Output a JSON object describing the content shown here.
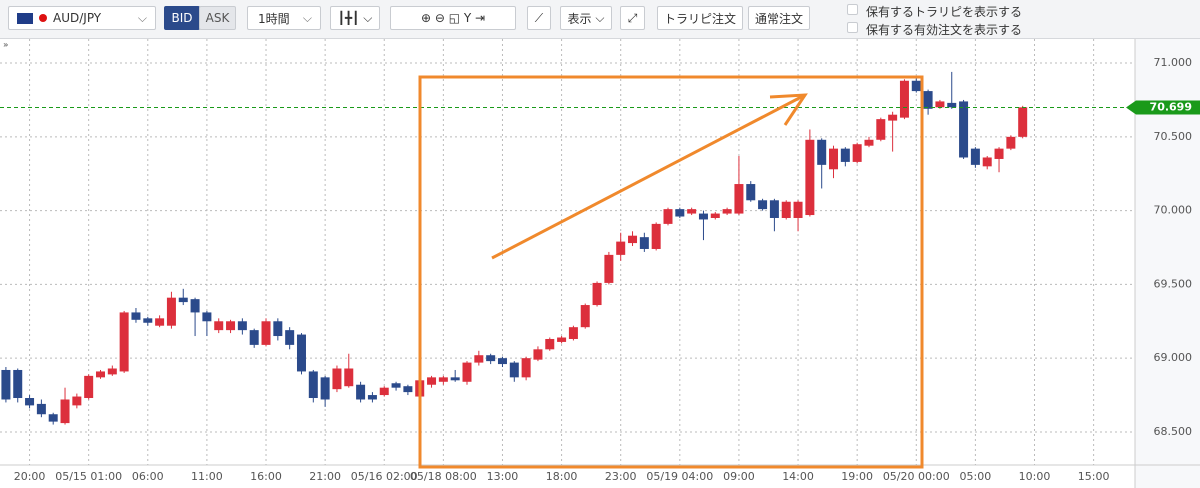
{
  "toolbar": {
    "symbol": "AUD/JPY",
    "bid": "BID",
    "ask": "ASK",
    "timeframe": "1時間",
    "display": "表示",
    "trarepi_order": "トラリピ注文",
    "normal_order": "通常注文",
    "show_trarepi": "保有するトラリピを表示する",
    "show_orders": "保有する有効注文を表示する"
  },
  "chart_data": {
    "type": "candlestick",
    "categories": [
      null,
      null,
      "20:00",
      null,
      null,
      null,
      null,
      "05/15 01:00",
      null,
      null,
      null,
      null,
      "06:00",
      null,
      null,
      null,
      null,
      "11:00",
      null,
      null,
      null,
      null,
      "16:00",
      null,
      null,
      null,
      null,
      "21:00",
      null,
      null,
      null,
      null,
      "05/16 02:00",
      null,
      null,
      null,
      null,
      "05/18 08:00",
      null,
      null,
      null,
      null,
      "13:00",
      null,
      null,
      null,
      null,
      "18:00",
      null,
      null,
      null,
      null,
      "23:00",
      null,
      null,
      null,
      null,
      "05/19 04:00",
      null,
      null,
      null,
      null,
      "09:00",
      null,
      null,
      null,
      null,
      "14:00",
      null,
      null,
      null,
      null,
      "19:00",
      null,
      null,
      null,
      null,
      "05/20 00:00",
      null,
      null,
      null,
      null,
      "05:00",
      null,
      null,
      null,
      null,
      "10:00",
      null,
      null,
      null,
      null,
      "15:00",
      null,
      null,
      null
    ],
    "open": [
      68.92,
      68.92,
      68.73,
      68.69,
      68.62,
      68.56,
      68.68,
      68.73,
      68.87,
      68.89,
      68.91,
      69.31,
      69.27,
      69.22,
      69.22,
      69.41,
      69.4,
      69.31,
      69.19,
      69.19,
      69.25,
      69.19,
      69.09,
      69.25,
      69.19,
      69.16,
      68.91,
      68.87,
      68.79,
      68.81,
      68.82,
      68.75,
      68.75,
      68.83,
      68.81,
      68.74,
      68.82,
      68.84,
      68.87,
      68.84,
      68.97,
      69.02,
      69.0,
      68.97,
      68.87,
      68.99,
      69.06,
      69.11,
      69.13,
      69.21,
      69.36,
      69.51,
      69.7,
      69.78,
      69.82,
      69.74,
      69.91,
      70.01,
      69.98,
      69.98,
      69.95,
      69.98,
      69.98,
      70.18,
      70.07,
      70.07,
      69.95,
      69.95,
      69.97,
      70.48,
      70.28,
      70.42,
      70.33,
      70.44,
      70.48,
      70.61,
      70.63,
      70.88,
      70.81,
      70.7,
      70.73,
      70.74,
      70.42,
      70.3,
      70.35,
      70.42,
      70.5,
      null,
      null,
      null,
      null,
      null,
      null,
      null,
      null,
      null
    ],
    "high": [
      68.94,
      68.93,
      68.75,
      68.72,
      68.63,
      68.8,
      68.76,
      68.89,
      68.92,
      68.95,
      69.32,
      69.34,
      69.28,
      69.29,
      69.45,
      69.47,
      69.41,
      69.32,
      69.27,
      69.26,
      69.27,
      69.2,
      69.27,
      69.27,
      69.21,
      69.17,
      68.92,
      68.88,
      68.95,
      69.03,
      68.84,
      68.77,
      68.81,
      68.84,
      68.82,
      68.86,
      68.88,
      68.88,
      68.92,
      68.98,
      69.05,
      69.03,
      69.01,
      68.98,
      69.01,
      69.08,
      69.14,
      69.15,
      69.22,
      69.37,
      69.52,
      69.72,
      69.85,
      69.86,
      69.85,
      69.92,
      70.02,
      70.02,
      70.02,
      70.0,
      69.99,
      70.02,
      70.37,
      70.2,
      70.08,
      70.08,
      70.07,
      70.07,
      70.55,
      70.49,
      70.44,
      70.43,
      70.46,
      70.5,
      70.63,
      70.67,
      70.89,
      70.91,
      70.82,
      70.75,
      70.94,
      70.75,
      70.43,
      70.37,
      70.43,
      70.51,
      70.71,
      null,
      null,
      null,
      null,
      null,
      null,
      null,
      null,
      null
    ],
    "low": [
      68.7,
      68.7,
      68.66,
      68.6,
      68.55,
      68.55,
      68.66,
      68.72,
      68.86,
      68.88,
      68.9,
      69.24,
      69.22,
      69.21,
      69.2,
      69.36,
      69.15,
      69.15,
      69.17,
      69.17,
      69.16,
      69.07,
      69.08,
      69.12,
      69.06,
      68.89,
      68.7,
      68.67,
      68.77,
      68.8,
      68.7,
      68.7,
      68.74,
      68.78,
      68.75,
      68.68,
      68.8,
      68.82,
      68.84,
      68.82,
      68.95,
      68.96,
      68.94,
      68.84,
      68.85,
      68.98,
      69.05,
      69.1,
      69.12,
      69.2,
      69.35,
      69.5,
      69.66,
      69.76,
      69.72,
      69.73,
      69.9,
      69.95,
      69.97,
      69.8,
      69.94,
      69.97,
      69.97,
      70.06,
      70.0,
      69.86,
      69.94,
      69.86,
      69.96,
      70.15,
      70.22,
      70.3,
      70.32,
      70.43,
      70.47,
      70.4,
      70.62,
      70.8,
      70.65,
      70.69,
      70.69,
      70.35,
      70.29,
      70.28,
      70.26,
      70.41,
      70.49,
      null,
      null,
      null,
      null,
      null,
      null,
      null,
      null,
      null
    ],
    "close": [
      68.72,
      68.73,
      68.68,
      68.62,
      68.57,
      68.72,
      68.74,
      68.88,
      68.91,
      68.93,
      69.31,
      69.26,
      69.24,
      69.27,
      69.41,
      69.38,
      69.31,
      69.25,
      69.25,
      69.25,
      69.19,
      69.09,
      69.25,
      69.15,
      69.09,
      68.91,
      68.73,
      68.72,
      68.93,
      68.93,
      68.72,
      68.72,
      68.8,
      68.8,
      68.77,
      68.85,
      68.87,
      68.87,
      68.85,
      68.97,
      69.02,
      68.98,
      68.96,
      68.87,
      69.0,
      69.06,
      69.13,
      69.14,
      69.21,
      69.36,
      69.51,
      69.7,
      69.79,
      69.83,
      69.74,
      69.91,
      70.01,
      69.96,
      70.01,
      69.94,
      69.98,
      70.01,
      70.18,
      70.07,
      70.01,
      69.95,
      70.06,
      70.06,
      70.48,
      70.31,
      70.42,
      70.33,
      70.45,
      70.48,
      70.62,
      70.65,
      70.88,
      70.81,
      70.69,
      70.74,
      70.7,
      70.36,
      70.31,
      70.36,
      70.42,
      70.5,
      70.7,
      null,
      null,
      null,
      null,
      null,
      null,
      null,
      null,
      null
    ],
    "up_color": "#dc2f3c",
    "down_color": "#2b4a8b",
    "ylim": [
      68.276,
      71.163
    ],
    "yticks": [
      {
        "value": 68.5,
        "label": "68.500"
      },
      {
        "value": 69,
        "label": "69.000"
      },
      {
        "value": 69.5,
        "label": "69.500"
      },
      {
        "value": 70,
        "label": "70.000"
      },
      {
        "value": 70.5,
        "label": "70.500"
      },
      {
        "value": 71,
        "label": "71.000"
      }
    ],
    "grid": true,
    "current_price": 70.699,
    "current_price_color": "#1a9a1a"
  }
}
